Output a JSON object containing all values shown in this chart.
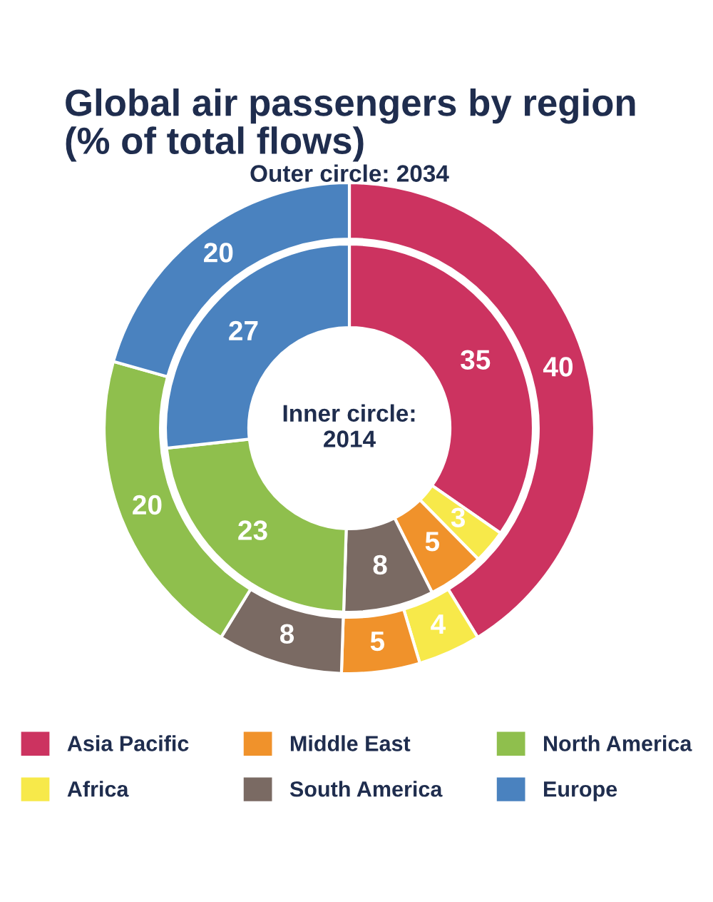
{
  "chart_data": {
    "type": "donut",
    "title": "Global air passengers by region\n(% of total flows)",
    "categories": [
      "Asia Pacific",
      "Africa",
      "Middle East",
      "South America",
      "North America",
      "Europe"
    ],
    "colors": [
      "#cc3360",
      "#f7e94a",
      "#f0922b",
      "#7a6a63",
      "#8fbf4d",
      "#4a82bf"
    ],
    "series": [
      {
        "values": [
          40,
          4,
          5,
          8,
          20,
          20
        ]
      },
      {
        "values": [
          35,
          3,
          5,
          8,
          23,
          27
        ]
      }
    ],
    "annotations": [
      "Outer circle: 2034",
      "Inner circle:\n2014"
    ],
    "data_labels": true,
    "legend": "bottom"
  }
}
